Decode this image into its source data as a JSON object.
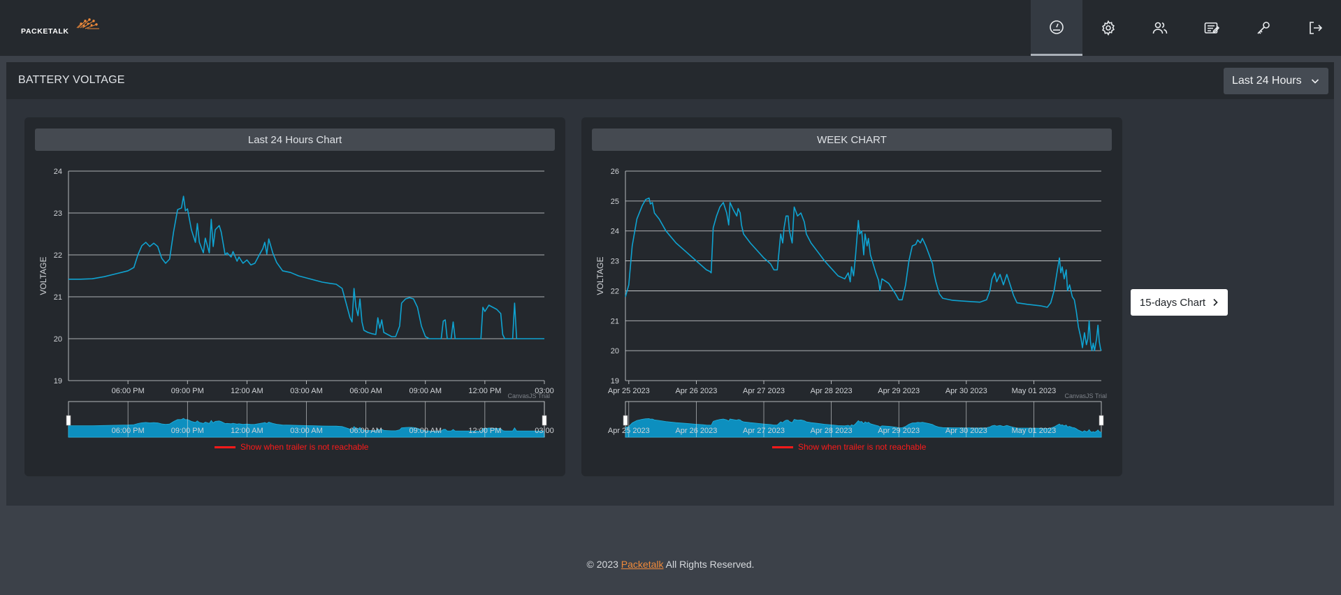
{
  "brand": {
    "name": "PACKETALK",
    "accent": "#f08a3a"
  },
  "nav": [
    {
      "icon": "dashboard-icon",
      "active": true
    },
    {
      "icon": "gear-icon",
      "active": false
    },
    {
      "icon": "users-icon",
      "active": false
    },
    {
      "icon": "notes-icon",
      "active": false
    },
    {
      "icon": "key-icon",
      "active": false
    },
    {
      "icon": "logout-icon",
      "active": false
    }
  ],
  "panel": {
    "title": "BATTERY VOLTAGE",
    "range_label": "Last 24 Hours"
  },
  "legend_label": "Show when trailer is not reachable",
  "watermark": "CanvasJS Trial",
  "fifteen_days_label": "15-days Chart",
  "footer": {
    "prefix": "© 2023 ",
    "link": "Packetalk",
    "suffix": " All Rights Reserved."
  },
  "colors": {
    "series": "#0fa3d1",
    "legend": "#ff1a1a"
  },
  "chart_data": [
    {
      "type": "line",
      "title": "Last 24 Hours Chart",
      "ylabel": "VOLTAGE",
      "ylim": [
        19,
        24
      ],
      "yticks": [
        19,
        20,
        21,
        22,
        23,
        24
      ],
      "xlim": [
        15,
        39
      ],
      "xticks": [
        {
          "x": 18,
          "label": "06:00 PM"
        },
        {
          "x": 21,
          "label": "09:00 PM"
        },
        {
          "x": 24,
          "label": "12:00 AM"
        },
        {
          "x": 27,
          "label": "03:00 AM"
        },
        {
          "x": 30,
          "label": "06:00 AM"
        },
        {
          "x": 33,
          "label": "09:00 AM"
        },
        {
          "x": 36,
          "label": "12:00 PM"
        },
        {
          "x": 39,
          "label": "03:00"
        }
      ],
      "series": [
        {
          "name": "Battery Voltage",
          "points": [
            [
              15,
              21.42
            ],
            [
              15.6,
              21.42
            ],
            [
              16.2,
              21.43
            ],
            [
              16.8,
              21.48
            ],
            [
              17.4,
              21.55
            ],
            [
              18,
              21.62
            ],
            [
              18.3,
              21.7
            ],
            [
              18.5,
              22.0
            ],
            [
              18.7,
              22.22
            ],
            [
              18.9,
              22.3
            ],
            [
              19.1,
              22.2
            ],
            [
              19.3,
              22.28
            ],
            [
              19.5,
              22.2
            ],
            [
              19.7,
              21.92
            ],
            [
              19.9,
              21.8
            ],
            [
              20.1,
              21.9
            ],
            [
              20.3,
              22.55
            ],
            [
              20.5,
              23.08
            ],
            [
              20.7,
              23.12
            ],
            [
              20.8,
              23.4
            ],
            [
              20.9,
              23.05
            ],
            [
              21.0,
              23.1
            ],
            [
              21.2,
              22.6
            ],
            [
              21.4,
              22.3
            ],
            [
              21.5,
              22.75
            ],
            [
              21.6,
              22.3
            ],
            [
              21.8,
              22.05
            ],
            [
              21.9,
              22.4
            ],
            [
              22.1,
              22.05
            ],
            [
              22.2,
              22.85
            ],
            [
              22.3,
              22.2
            ],
            [
              22.4,
              22.6
            ],
            [
              22.6,
              22.7
            ],
            [
              22.7,
              22.55
            ],
            [
              22.9,
              22.0
            ],
            [
              23.0,
              22.05
            ],
            [
              23.2,
              21.95
            ],
            [
              23.3,
              22.08
            ],
            [
              23.5,
              21.85
            ],
            [
              23.6,
              21.95
            ],
            [
              23.8,
              21.8
            ],
            [
              24.0,
              21.88
            ],
            [
              24.2,
              21.76
            ],
            [
              24.4,
              21.8
            ],
            [
              24.6,
              21.98
            ],
            [
              24.8,
              22.15
            ],
            [
              24.9,
              22.3
            ],
            [
              25.0,
              22.02
            ],
            [
              25.1,
              22.38
            ],
            [
              25.3,
              22.05
            ],
            [
              25.5,
              21.82
            ],
            [
              25.8,
              21.62
            ],
            [
              26.2,
              21.58
            ],
            [
              26.6,
              21.5
            ],
            [
              27.0,
              21.45
            ],
            [
              27.4,
              21.4
            ],
            [
              27.8,
              21.35
            ],
            [
              28.2,
              21.32
            ],
            [
              28.5,
              21.3
            ],
            [
              28.8,
              21.2
            ],
            [
              29.0,
              20.85
            ],
            [
              29.2,
              20.5
            ],
            [
              29.3,
              20.4
            ],
            [
              29.4,
              21.2
            ],
            [
              29.5,
              20.75
            ],
            [
              29.6,
              20.55
            ],
            [
              29.7,
              20.95
            ],
            [
              29.8,
              20.4
            ],
            [
              29.9,
              20.2
            ],
            [
              30.1,
              20.15
            ],
            [
              30.3,
              20.12
            ],
            [
              30.5,
              20.1
            ],
            [
              30.6,
              20.5
            ],
            [
              30.7,
              20.25
            ],
            [
              30.8,
              20.45
            ],
            [
              30.9,
              20.15
            ],
            [
              31.1,
              20.1
            ],
            [
              31.3,
              20.05
            ],
            [
              31.5,
              20.05
            ],
            [
              31.7,
              20.3
            ],
            [
              31.8,
              20.85
            ],
            [
              32.0,
              20.95
            ],
            [
              32.2,
              20.98
            ],
            [
              32.4,
              20.95
            ],
            [
              32.6,
              20.75
            ],
            [
              32.8,
              20.3
            ],
            [
              33.0,
              20.05
            ],
            [
              33.2,
              20.0
            ],
            [
              33.5,
              20.0
            ],
            [
              33.8,
              20.0
            ],
            [
              33.9,
              20.42
            ],
            [
              34.0,
              20.45
            ],
            [
              34.1,
              20.0
            ],
            [
              34.3,
              20.0
            ],
            [
              34.4,
              20.4
            ],
            [
              34.5,
              20.0
            ],
            [
              35.0,
              20.0
            ],
            [
              35.5,
              20.0
            ],
            [
              35.8,
              20.0
            ],
            [
              35.9,
              20.75
            ],
            [
              36.0,
              20.65
            ],
            [
              36.2,
              20.8
            ],
            [
              36.4,
              20.75
            ],
            [
              36.6,
              20.7
            ],
            [
              36.8,
              20.6
            ],
            [
              36.9,
              20.1
            ],
            [
              37.0,
              20.0
            ],
            [
              37.4,
              20.0
            ],
            [
              37.5,
              20.85
            ],
            [
              37.6,
              20.0
            ],
            [
              38.0,
              20.0
            ],
            [
              38.5,
              20.0
            ],
            [
              39.0,
              20.0
            ]
          ]
        }
      ]
    },
    {
      "type": "line",
      "title": "WEEK CHART",
      "ylabel": "VOLTAGE",
      "ylim": [
        19,
        26
      ],
      "yticks": [
        19,
        20,
        21,
        22,
        23,
        24,
        25,
        26
      ],
      "xlim": [
        -0.05,
        7.0
      ],
      "xticks": [
        {
          "x": 0,
          "label": "Apr 25 2023"
        },
        {
          "x": 1,
          "label": "Apr 26 2023"
        },
        {
          "x": 2,
          "label": "Apr 27 2023"
        },
        {
          "x": 3,
          "label": "Apr 28 2023"
        },
        {
          "x": 4,
          "label": "Apr 29 2023"
        },
        {
          "x": 5,
          "label": "Apr 30 2023"
        },
        {
          "x": 6,
          "label": "May 01 2023"
        }
      ],
      "series": [
        {
          "name": "Battery Voltage",
          "points": [
            [
              -0.05,
              21.8
            ],
            [
              0.0,
              22.2
            ],
            [
              0.05,
              23.5
            ],
            [
              0.12,
              24.4
            ],
            [
              0.2,
              24.85
            ],
            [
              0.25,
              25.05
            ],
            [
              0.3,
              25.1
            ],
            [
              0.32,
              24.9
            ],
            [
              0.35,
              24.95
            ],
            [
              0.38,
              24.6
            ],
            [
              0.45,
              24.4
            ],
            [
              0.55,
              24.0
            ],
            [
              0.7,
              23.6
            ],
            [
              0.85,
              23.3
            ],
            [
              1.0,
              23.0
            ],
            [
              1.1,
              22.8
            ],
            [
              1.15,
              22.7
            ],
            [
              1.2,
              22.65
            ],
            [
              1.22,
              22.6
            ],
            [
              1.25,
              24.1
            ],
            [
              1.3,
              24.5
            ],
            [
              1.35,
              24.8
            ],
            [
              1.4,
              24.95
            ],
            [
              1.45,
              24.6
            ],
            [
              1.48,
              24.2
            ],
            [
              1.5,
              24.95
            ],
            [
              1.55,
              24.7
            ],
            [
              1.6,
              24.5
            ],
            [
              1.62,
              24.75
            ],
            [
              1.65,
              24.6
            ],
            [
              1.67,
              24.2
            ],
            [
              1.7,
              23.9
            ],
            [
              1.8,
              23.6
            ],
            [
              1.9,
              23.35
            ],
            [
              2.0,
              23.1
            ],
            [
              2.1,
              22.9
            ],
            [
              2.15,
              22.7
            ],
            [
              2.2,
              22.7
            ],
            [
              2.25,
              23.9
            ],
            [
              2.28,
              23.6
            ],
            [
              2.3,
              24.1
            ],
            [
              2.33,
              24.5
            ],
            [
              2.36,
              24.5
            ],
            [
              2.38,
              24.0
            ],
            [
              2.42,
              23.6
            ],
            [
              2.45,
              24.8
            ],
            [
              2.5,
              24.5
            ],
            [
              2.55,
              24.6
            ],
            [
              2.6,
              24.3
            ],
            [
              2.63,
              23.9
            ],
            [
              2.7,
              23.6
            ],
            [
              2.8,
              23.3
            ],
            [
              2.9,
              23.0
            ],
            [
              3.0,
              22.75
            ],
            [
              3.1,
              22.5
            ],
            [
              3.2,
              22.4
            ],
            [
              3.25,
              22.6
            ],
            [
              3.28,
              22.3
            ],
            [
              3.3,
              22.8
            ],
            [
              3.33,
              22.5
            ],
            [
              3.36,
              23.2
            ],
            [
              3.4,
              24.35
            ],
            [
              3.42,
              23.9
            ],
            [
              3.45,
              24.0
            ],
            [
              3.48,
              23.2
            ],
            [
              3.5,
              23.9
            ],
            [
              3.53,
              23.5
            ],
            [
              3.55,
              23.75
            ],
            [
              3.58,
              23.2
            ],
            [
              3.62,
              22.9
            ],
            [
              3.66,
              22.6
            ],
            [
              3.7,
              22.35
            ],
            [
              3.72,
              22.0
            ],
            [
              3.75,
              22.4
            ],
            [
              3.85,
              22.25
            ],
            [
              3.95,
              21.9
            ],
            [
              4.0,
              21.7
            ],
            [
              4.05,
              21.7
            ],
            [
              4.1,
              22.2
            ],
            [
              4.15,
              23.0
            ],
            [
              4.2,
              23.5
            ],
            [
              4.25,
              23.55
            ],
            [
              4.28,
              23.7
            ],
            [
              4.32,
              23.6
            ],
            [
              4.35,
              23.75
            ],
            [
              4.4,
              23.5
            ],
            [
              4.45,
              23.2
            ],
            [
              4.5,
              22.9
            ],
            [
              4.52,
              22.6
            ],
            [
              4.55,
              22.3
            ],
            [
              4.6,
              21.9
            ],
            [
              4.65,
              21.75
            ],
            [
              4.8,
              21.68
            ],
            [
              5.0,
              21.65
            ],
            [
              5.2,
              21.62
            ],
            [
              5.3,
              21.7
            ],
            [
              5.35,
              22.0
            ],
            [
              5.38,
              22.4
            ],
            [
              5.42,
              22.6
            ],
            [
              5.45,
              22.3
            ],
            [
              5.5,
              22.55
            ],
            [
              5.55,
              22.2
            ],
            [
              5.6,
              22.55
            ],
            [
              5.65,
              22.2
            ],
            [
              5.7,
              21.85
            ],
            [
              5.75,
              21.6
            ],
            [
              5.9,
              21.55
            ],
            [
              6.1,
              21.5
            ],
            [
              6.2,
              21.45
            ],
            [
              6.25,
              21.6
            ],
            [
              6.3,
              22.0
            ],
            [
              6.35,
              22.7
            ],
            [
              6.38,
              23.1
            ],
            [
              6.4,
              22.6
            ],
            [
              6.42,
              22.8
            ],
            [
              6.45,
              22.4
            ],
            [
              6.48,
              22.7
            ],
            [
              6.5,
              22.0
            ],
            [
              6.53,
              22.2
            ],
            [
              6.57,
              21.8
            ],
            [
              6.6,
              21.7
            ],
            [
              6.63,
              21.3
            ],
            [
              6.66,
              20.8
            ],
            [
              6.7,
              20.4
            ],
            [
              6.72,
              20.1
            ],
            [
              6.75,
              20.6
            ],
            [
              6.78,
              20.2
            ],
            [
              6.8,
              20.4
            ],
            [
              6.82,
              21.0
            ],
            [
              6.84,
              20.3
            ],
            [
              6.86,
              20.0
            ],
            [
              6.88,
              20.25
            ],
            [
              6.9,
              20.0
            ],
            [
              6.93,
              20.4
            ],
            [
              6.95,
              20.85
            ],
            [
              6.97,
              20.3
            ],
            [
              6.99,
              20.05
            ],
            [
              7.0,
              20.0
            ]
          ]
        }
      ]
    }
  ]
}
